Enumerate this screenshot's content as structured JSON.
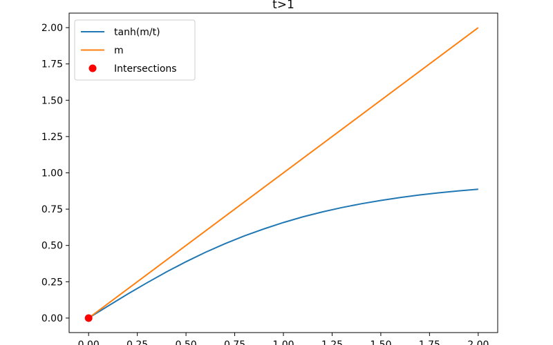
{
  "chart_data": {
    "type": "line",
    "title": "t>1",
    "xlabel": "",
    "ylabel": "",
    "xlim": [
      -0.1,
      2.1
    ],
    "ylim": [
      -0.1,
      2.1
    ],
    "xticks": [
      0.0,
      0.25,
      0.5,
      0.75,
      1.0,
      1.25,
      1.5,
      1.75,
      2.0
    ],
    "xtick_labels": [
      "0.00",
      "0.25",
      "0.50",
      "0.75",
      "1.00",
      "1.25",
      "1.50",
      "1.75",
      "2.00"
    ],
    "yticks": [
      0.0,
      0.25,
      0.5,
      0.75,
      1.0,
      1.25,
      1.5,
      1.75,
      2.0
    ],
    "ytick_labels": [
      "0.00",
      "0.25",
      "0.50",
      "0.75",
      "1.00",
      "1.25",
      "1.50",
      "1.75",
      "2.00"
    ],
    "series": [
      {
        "name": "tanh(m/t)",
        "kind": "line",
        "color": "#1f77b4",
        "x": [
          0.0,
          0.1,
          0.2,
          0.3,
          0.4,
          0.5,
          0.6,
          0.7,
          0.8,
          0.9,
          1.0,
          1.1,
          1.2,
          1.3,
          1.4,
          1.5,
          1.6,
          1.7,
          1.8,
          1.9,
          2.0
        ],
        "y": [
          0.0,
          0.083,
          0.165,
          0.243,
          0.318,
          0.388,
          0.453,
          0.512,
          0.566,
          0.614,
          0.658,
          0.697,
          0.731,
          0.761,
          0.787,
          0.81,
          0.83,
          0.848,
          0.863,
          0.876,
          0.887
        ]
      },
      {
        "name": "m",
        "kind": "line",
        "color": "#ff7f0e",
        "x": [
          0.0,
          2.0
        ],
        "y": [
          0.0,
          2.0
        ]
      },
      {
        "name": "Intersections",
        "kind": "scatter",
        "color": "#ff0000",
        "x": [
          0.0
        ],
        "y": [
          0.0
        ]
      }
    ],
    "legend": {
      "position": "top-left"
    },
    "grid": false
  }
}
